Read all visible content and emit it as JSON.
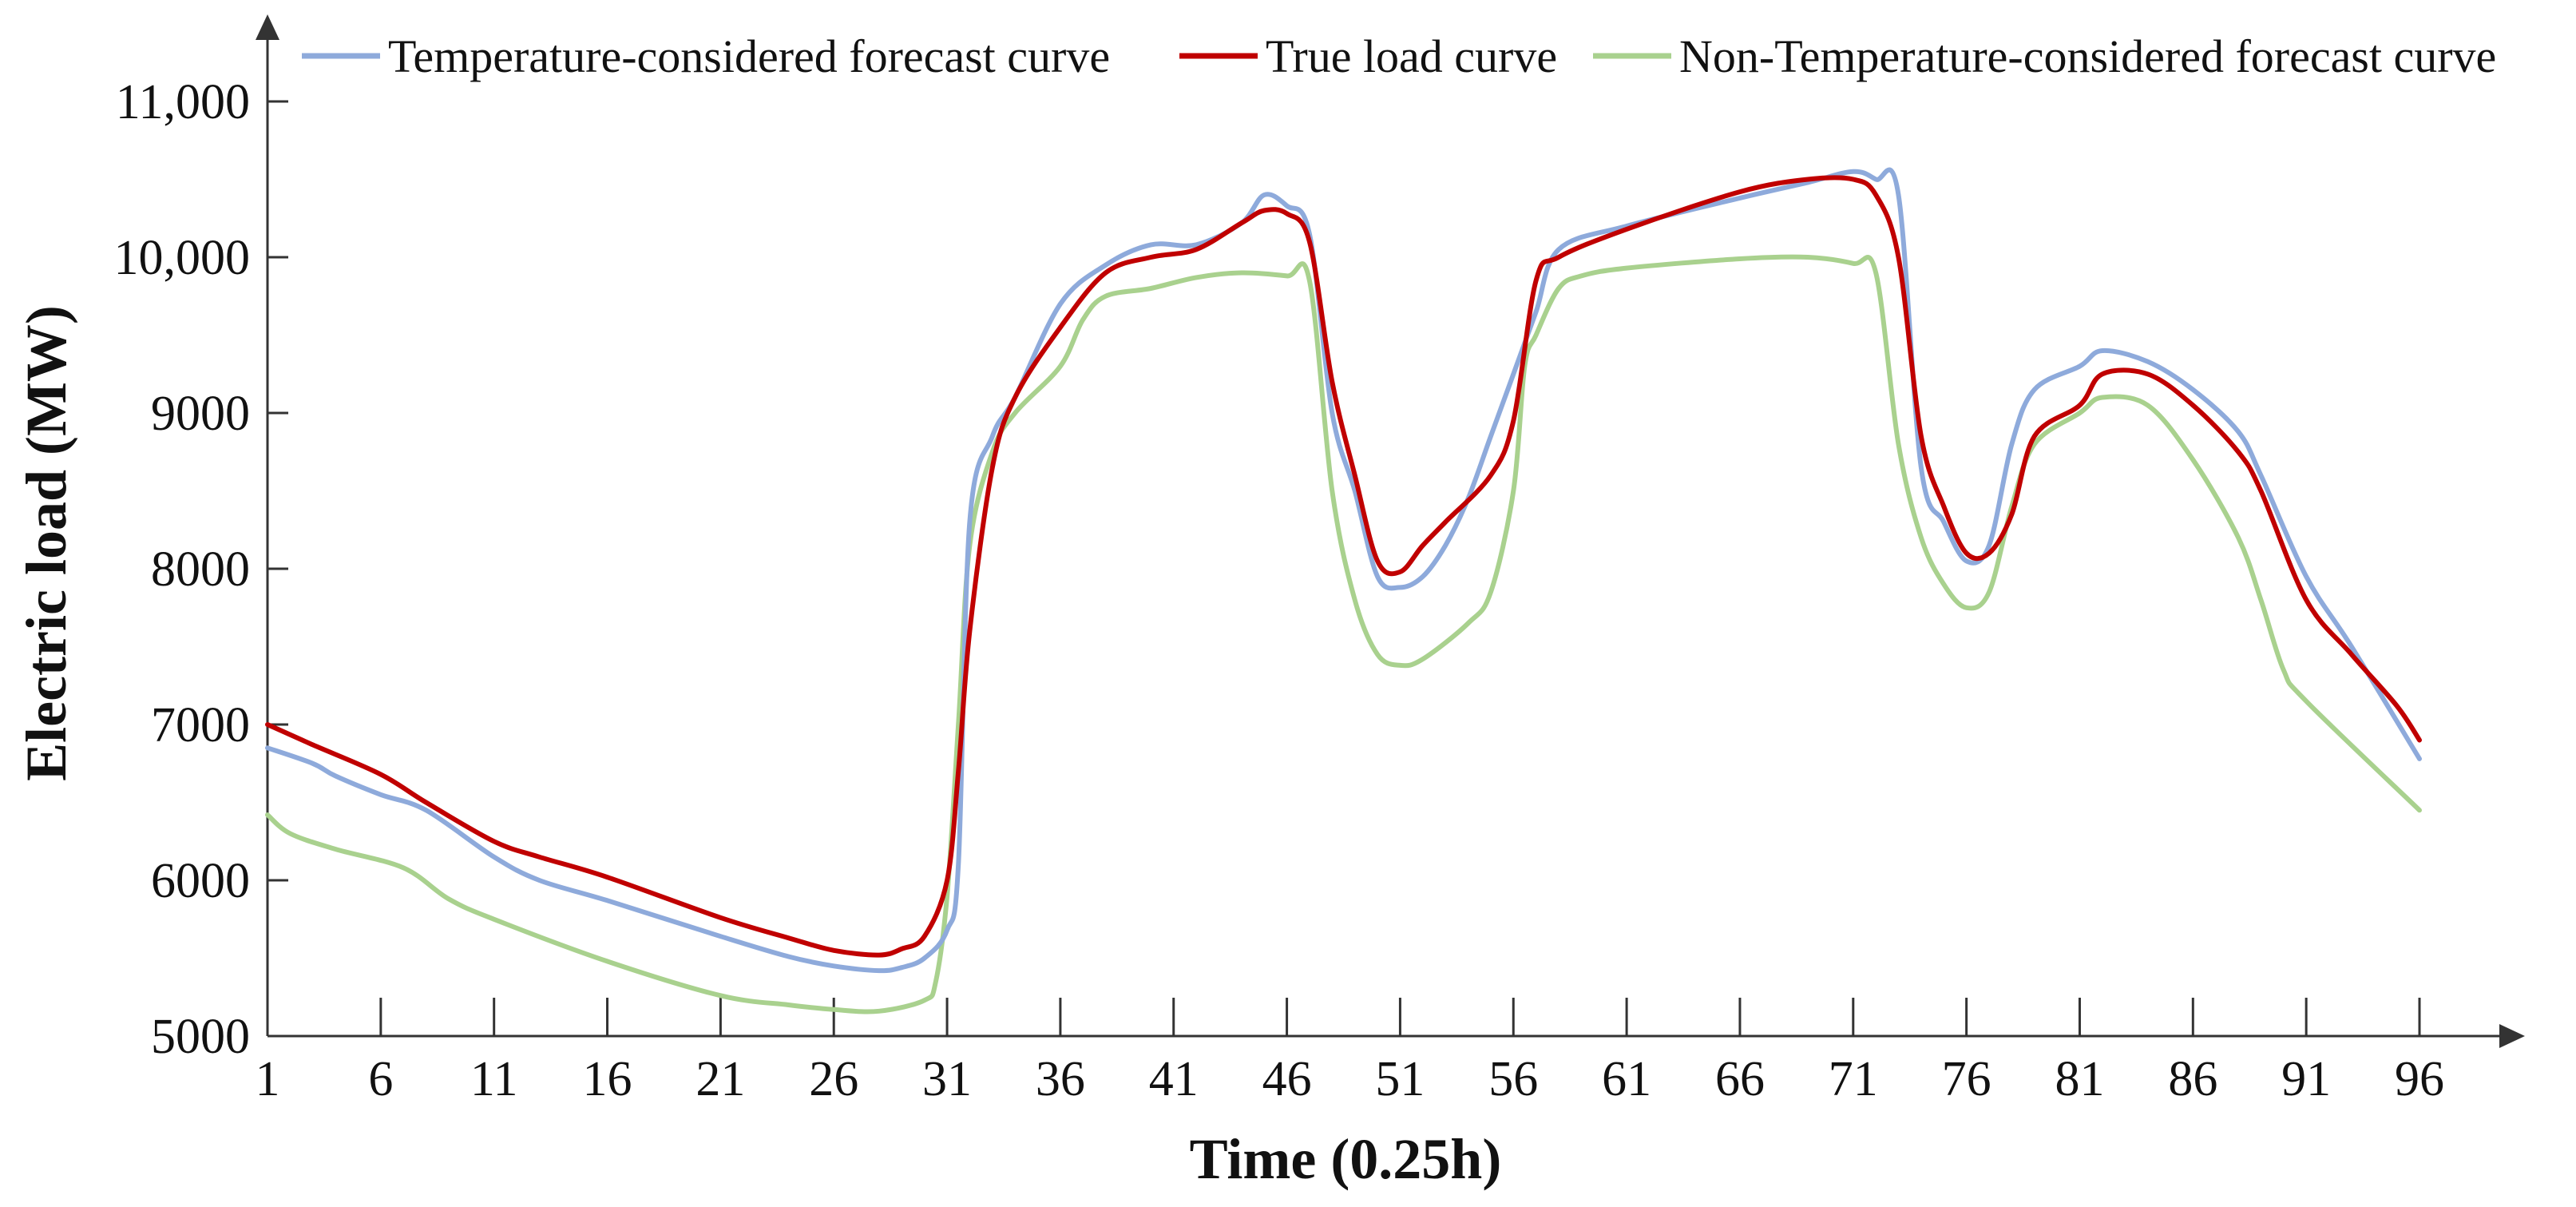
{
  "chart_data": {
    "type": "line",
    "title": "",
    "xlabel": "Time (0.25h)",
    "ylabel": "Electric load (MW)",
    "xlim": [
      1,
      96
    ],
    "ylim": [
      5000,
      11000
    ],
    "x_ticks": [
      1,
      6,
      11,
      16,
      21,
      26,
      31,
      36,
      41,
      46,
      51,
      56,
      61,
      66,
      71,
      76,
      81,
      86,
      91,
      96
    ],
    "x_tick_labels": [
      "1",
      "6",
      "11",
      "16",
      "21",
      "26",
      "31",
      "36",
      "41",
      "46",
      "51",
      "56",
      "61",
      "66",
      "71",
      "76",
      "81",
      "86",
      "91",
      "96"
    ],
    "y_ticks": [
      5000,
      6000,
      7000,
      8000,
      9000,
      10000,
      11000
    ],
    "y_tick_labels": [
      "5000",
      "6000",
      "7000",
      "8000",
      "9000",
      "10,000",
      "11,000"
    ],
    "legend_position": "top",
    "grid": false,
    "series": [
      {
        "name": "Temperature-considered forecast curve",
        "color": "#8eaadb",
        "points": [
          [
            1,
            6850
          ],
          [
            3,
            6750
          ],
          [
            4,
            6670
          ],
          [
            6,
            6550
          ],
          [
            8,
            6450
          ],
          [
            11,
            6150
          ],
          [
            13,
            6000
          ],
          [
            16,
            5870
          ],
          [
            21,
            5640
          ],
          [
            24,
            5510
          ],
          [
            26,
            5450
          ],
          [
            28,
            5420
          ],
          [
            29,
            5440
          ],
          [
            30,
            5500
          ],
          [
            31,
            5680
          ],
          [
            31.5,
            6100
          ],
          [
            32,
            8300
          ],
          [
            33,
            8850
          ],
          [
            34,
            9100
          ],
          [
            36,
            9700
          ],
          [
            38,
            9950
          ],
          [
            40,
            10080
          ],
          [
            42,
            10080
          ],
          [
            44,
            10220
          ],
          [
            45,
            10400
          ],
          [
            46,
            10330
          ],
          [
            47,
            10150
          ],
          [
            48,
            9000
          ],
          [
            49,
            8500
          ],
          [
            50,
            7950
          ],
          [
            51,
            7880
          ],
          [
            52,
            7950
          ],
          [
            53,
            8150
          ],
          [
            54,
            8450
          ],
          [
            55,
            8850
          ],
          [
            56,
            9250
          ],
          [
            57,
            9650
          ],
          [
            58,
            10050
          ],
          [
            61,
            10200
          ],
          [
            66,
            10380
          ],
          [
            69,
            10480
          ],
          [
            71,
            10550
          ],
          [
            72,
            10500
          ],
          [
            73,
            10400
          ],
          [
            74,
            8650
          ],
          [
            75,
            8300
          ],
          [
            76,
            8050
          ],
          [
            77,
            8150
          ],
          [
            78,
            8800
          ],
          [
            79,
            9150
          ],
          [
            81,
            9300
          ],
          [
            82,
            9400
          ],
          [
            84,
            9330
          ],
          [
            86,
            9150
          ],
          [
            88,
            8880
          ],
          [
            89,
            8600
          ],
          [
            91,
            7950
          ],
          [
            93,
            7500
          ],
          [
            96,
            6780
          ]
        ]
      },
      {
        "name": "True load curve",
        "color": "#c00000",
        "points": [
          [
            1,
            7000
          ],
          [
            3,
            6870
          ],
          [
            6,
            6680
          ],
          [
            8,
            6500
          ],
          [
            11,
            6250
          ],
          [
            13,
            6150
          ],
          [
            16,
            6020
          ],
          [
            21,
            5760
          ],
          [
            24,
            5630
          ],
          [
            26,
            5550
          ],
          [
            28,
            5520
          ],
          [
            29,
            5560
          ],
          [
            30,
            5640
          ],
          [
            31,
            6000
          ],
          [
            31.5,
            6700
          ],
          [
            32,
            7600
          ],
          [
            33,
            8650
          ],
          [
            34,
            9100
          ],
          [
            36,
            9550
          ],
          [
            38,
            9900
          ],
          [
            40,
            10000
          ],
          [
            42,
            10050
          ],
          [
            44,
            10220
          ],
          [
            45,
            10300
          ],
          [
            46,
            10280
          ],
          [
            47,
            10100
          ],
          [
            48,
            9200
          ],
          [
            49,
            8600
          ],
          [
            50,
            8050
          ],
          [
            51,
            7980
          ],
          [
            52,
            8150
          ],
          [
            53,
            8300
          ],
          [
            55,
            8600
          ],
          [
            56,
            8950
          ],
          [
            57,
            9850
          ],
          [
            58,
            10000
          ],
          [
            61,
            10180
          ],
          [
            66,
            10420
          ],
          [
            69,
            10500
          ],
          [
            71,
            10500
          ],
          [
            72,
            10400
          ],
          [
            73,
            10000
          ],
          [
            74,
            8850
          ],
          [
            75,
            8400
          ],
          [
            76,
            8100
          ],
          [
            77,
            8100
          ],
          [
            78,
            8350
          ],
          [
            79,
            8850
          ],
          [
            81,
            9050
          ],
          [
            82,
            9250
          ],
          [
            84,
            9250
          ],
          [
            86,
            9050
          ],
          [
            88,
            8750
          ],
          [
            89,
            8500
          ],
          [
            91,
            7800
          ],
          [
            93,
            7450
          ],
          [
            95,
            7120
          ],
          [
            96,
            6900
          ]
        ]
      },
      {
        "name": "Non-Temperature-considered forecast curve",
        "color": "#a9d18e",
        "points": [
          [
            1,
            6420
          ],
          [
            2,
            6300
          ],
          [
            4,
            6200
          ],
          [
            7,
            6080
          ],
          [
            9,
            5880
          ],
          [
            11,
            5750
          ],
          [
            16,
            5480
          ],
          [
            21,
            5260
          ],
          [
            24,
            5200
          ],
          [
            26,
            5170
          ],
          [
            28,
            5160
          ],
          [
            30,
            5230
          ],
          [
            30.5,
            5350
          ],
          [
            31,
            5900
          ],
          [
            31.5,
            7000
          ],
          [
            32,
            8150
          ],
          [
            33,
            8750
          ],
          [
            34,
            9000
          ],
          [
            36,
            9300
          ],
          [
            37,
            9600
          ],
          [
            38,
            9750
          ],
          [
            40,
            9800
          ],
          [
            42,
            9870
          ],
          [
            44,
            9900
          ],
          [
            46,
            9880
          ],
          [
            47,
            9850
          ],
          [
            48,
            8500
          ],
          [
            49,
            7800
          ],
          [
            50,
            7450
          ],
          [
            51,
            7380
          ],
          [
            52,
            7420
          ],
          [
            54,
            7650
          ],
          [
            55,
            7850
          ],
          [
            56,
            8500
          ],
          [
            56.5,
            9300
          ],
          [
            57,
            9500
          ],
          [
            58,
            9800
          ],
          [
            59,
            9880
          ],
          [
            61,
            9930
          ],
          [
            66,
            9990
          ],
          [
            69,
            10000
          ],
          [
            71,
            9960
          ],
          [
            72,
            9900
          ],
          [
            73,
            8800
          ],
          [
            74,
            8200
          ],
          [
            75,
            7900
          ],
          [
            76,
            7750
          ],
          [
            77,
            7850
          ],
          [
            78,
            8400
          ],
          [
            79,
            8800
          ],
          [
            81,
            9000
          ],
          [
            82,
            9100
          ],
          [
            84,
            9050
          ],
          [
            86,
            8700
          ],
          [
            88,
            8200
          ],
          [
            89,
            7800
          ],
          [
            90,
            7350
          ],
          [
            91,
            7150
          ],
          [
            96,
            6450
          ]
        ]
      }
    ]
  }
}
